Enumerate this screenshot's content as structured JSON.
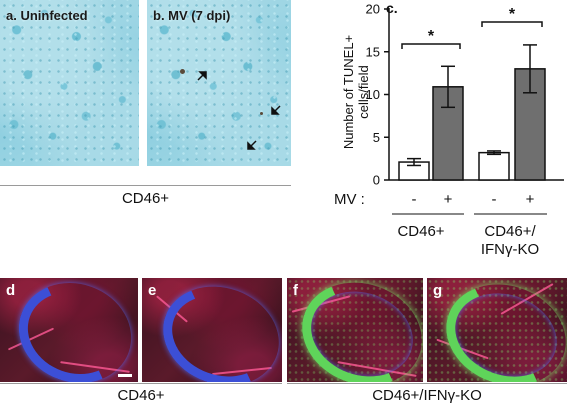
{
  "micrographs": {
    "a_label": "a. Uninfected",
    "b_label": "b. MV (7 dpi)",
    "caption": "CD46+"
  },
  "chart_data": {
    "type": "bar",
    "panel_label": "c.",
    "ylabel_line1": "Number of TUNEL+",
    "ylabel_line2": "cells/field",
    "ylim": [
      0,
      20
    ],
    "yticks": [
      0,
      5,
      10,
      15,
      20
    ],
    "categories": [
      "CD46+ / MV -",
      "CD46+ / MV +",
      "CD46+/IFNγ-KO / MV -",
      "CD46+/IFNγ-KO / MV +"
    ],
    "values": [
      2.1,
      10.9,
      3.2,
      13.0
    ],
    "errors": [
      0.4,
      2.4,
      0.2,
      2.8
    ],
    "bar_colors": [
      "#ffffff",
      "#6f6f6f",
      "#ffffff",
      "#6f6f6f"
    ],
    "mv_label": "MV :",
    "mv_signs": [
      "-",
      "+",
      "-",
      "+"
    ],
    "groups": [
      {
        "line1": "CD46+",
        "line2": ""
      },
      {
        "line1": "CD46+/",
        "line2": "IFNγ-KO"
      }
    ],
    "significance": [
      "*",
      "*"
    ]
  },
  "fluorescence": {
    "panels": [
      "d",
      "e",
      "f",
      "g"
    ],
    "caption_left": "CD46+",
    "caption_right": "CD46+/IFNγ-KO"
  }
}
